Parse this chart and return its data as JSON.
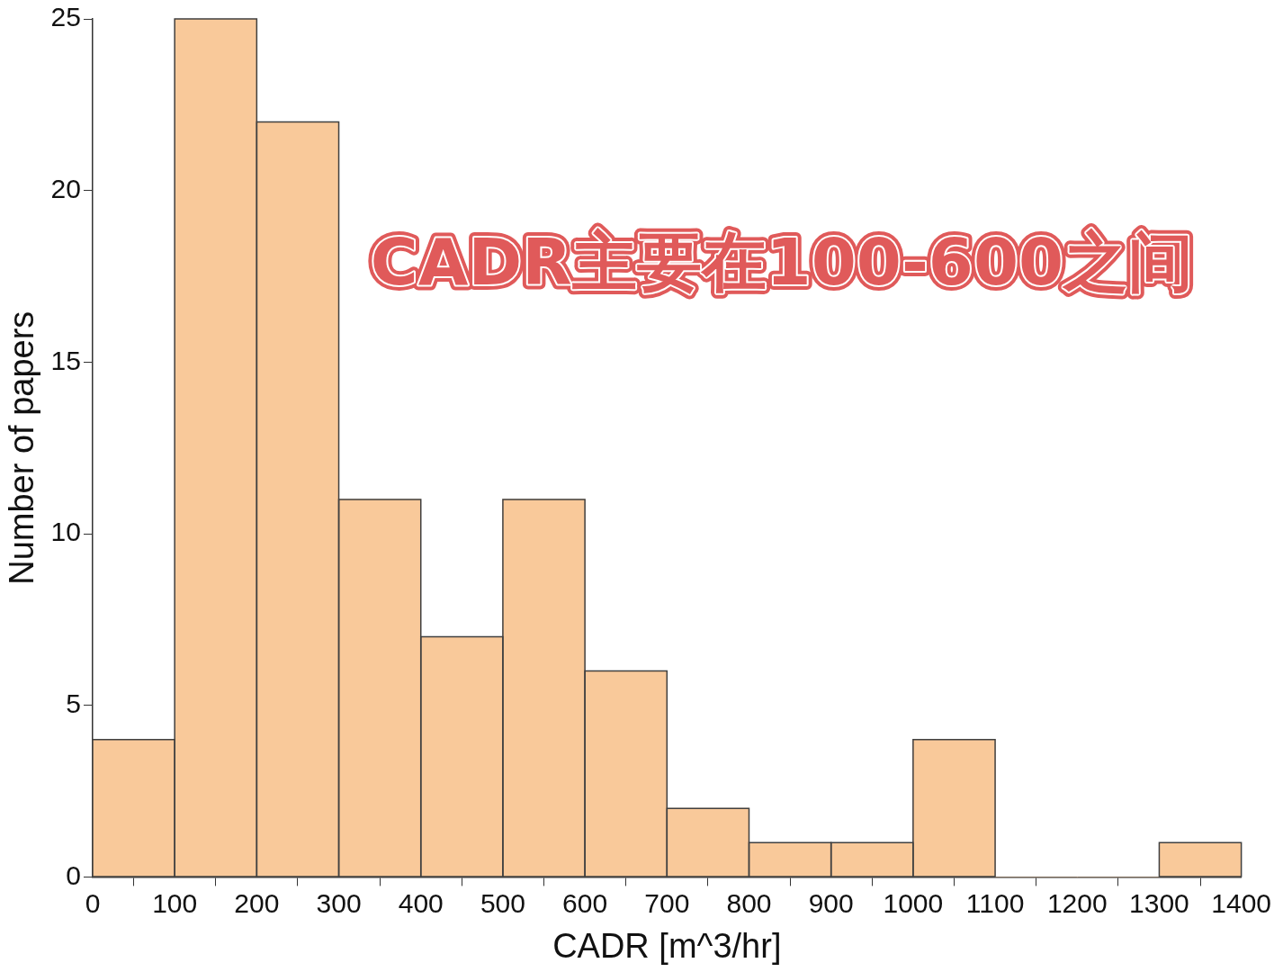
{
  "chart_data": {
    "type": "histogram",
    "xlabel": "CADR [m^3/hr]",
    "ylabel": "Number of papers",
    "bins": [
      0,
      100,
      200,
      300,
      400,
      500,
      600,
      700,
      800,
      900,
      1000,
      1100,
      1200,
      1300,
      1400
    ],
    "values": [
      4,
      25,
      22,
      11,
      7,
      11,
      6,
      2,
      1,
      1,
      4,
      0,
      0,
      1
    ],
    "color": "#f9c99a",
    "xlim": [
      0,
      1400
    ],
    "xticks": [
      0,
      100,
      200,
      300,
      400,
      500,
      600,
      700,
      800,
      900,
      1000,
      1100,
      1200,
      1300,
      1400
    ],
    "ylim": [
      0,
      25
    ],
    "yticks": [
      0,
      5,
      10,
      15,
      20,
      25
    ],
    "annotations": [
      "CADR主要在100-600之间"
    ]
  }
}
